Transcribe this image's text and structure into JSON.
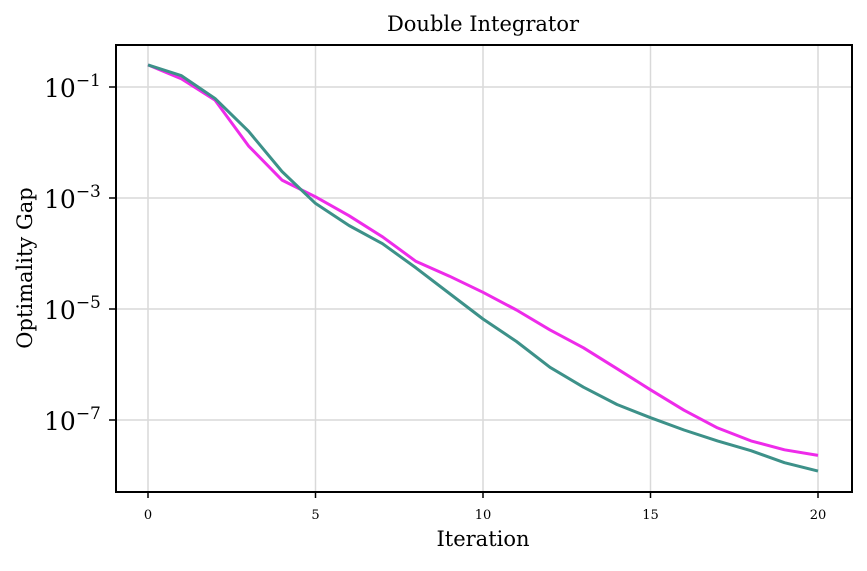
{
  "chart_data": {
    "type": "line",
    "title": "Double Integrator",
    "xlabel": "Iteration",
    "ylabel": "Optimality Gap",
    "yscale": "log",
    "xlim": [
      -1,
      21
    ],
    "ylim_log10": [
      -8.37,
      -0.38
    ],
    "grid": true,
    "legend": null,
    "x_ticks": [
      0,
      5,
      10,
      15,
      20
    ],
    "x_tick_labels": [
      "0",
      "5",
      "10",
      "15",
      "20"
    ],
    "y_ticks_log10": [
      -1,
      -3,
      -5,
      -7
    ],
    "y_tick_labels": [
      {
        "base": "10",
        "exp": "−1"
      },
      {
        "base": "10",
        "exp": "−3"
      },
      {
        "base": "10",
        "exp": "−5"
      },
      {
        "base": "10",
        "exp": "−7"
      }
    ],
    "x": [
      0,
      1,
      2,
      3,
      4,
      5,
      6,
      7,
      8,
      9,
      10,
      11,
      12,
      13,
      14,
      15,
      16,
      17,
      18,
      19,
      20
    ],
    "series": [
      {
        "name": "magenta",
        "color": "#ee2bea",
        "values": [
          0.25,
          0.14,
          0.058,
          0.0087,
          0.0021,
          0.00105,
          0.00048,
          0.0002,
          7.2e-05,
          3.9e-05,
          2e-05,
          9.6e-06,
          4.2e-06,
          2e-06,
          8.4e-07,
          3.5e-07,
          1.5e-07,
          7.2e-08,
          4.2e-08,
          2.9e-08,
          2.3e-08
        ]
      },
      {
        "name": "teal",
        "color": "#3d9189",
        "values": [
          0.25,
          0.16,
          0.062,
          0.016,
          0.003,
          0.0008,
          0.00032,
          0.00015,
          5.5e-05,
          1.9e-05,
          6.6e-06,
          2.6e-06,
          8.9e-07,
          3.9e-07,
          1.9e-07,
          1.1e-07,
          6.6e-08,
          4.2e-08,
          2.8e-08,
          1.7e-08,
          1.2e-08
        ]
      }
    ]
  }
}
